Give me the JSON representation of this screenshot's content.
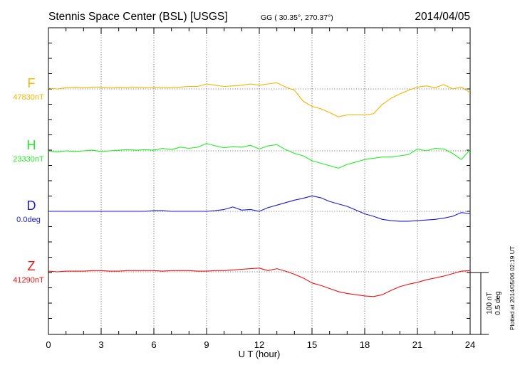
{
  "header": {
    "station": "Stennis Space Center (BSL)  [USGS]",
    "coords": "GG ( 30.35°, 270.37°)",
    "date": "2014/04/05"
  },
  "side_note": "Plotted at 2014/05/06 02:19 UT",
  "scale_bar": {
    "line1": "100 nT",
    "line2": "0.5 deg"
  },
  "chart_data": {
    "type": "line",
    "xlabel": "U T (hour)",
    "xlim": [
      0,
      24
    ],
    "xticks": [
      0,
      3,
      6,
      9,
      12,
      15,
      18,
      21,
      24
    ],
    "grid": true,
    "series": [
      {
        "name": "F",
        "baseline_label": "47830nT",
        "color": "#f5b400",
        "x": [
          0,
          0.5,
          1,
          1.5,
          2,
          2.5,
          3,
          3.5,
          4,
          4.5,
          5,
          5.5,
          6,
          6.5,
          7,
          7.5,
          8,
          8.5,
          9,
          9.5,
          10,
          10.5,
          11,
          11.5,
          12,
          12.5,
          13,
          13.5,
          14,
          14.5,
          15,
          15.5,
          16,
          16.5,
          17,
          17.5,
          18,
          18.5,
          19,
          19.5,
          20,
          20.5,
          21,
          21.5,
          22,
          22.5,
          23,
          23.5,
          24
        ],
        "y": [
          1,
          0,
          2,
          3,
          2,
          3,
          3,
          2,
          3,
          2,
          3,
          2,
          3,
          2,
          2,
          3,
          4,
          4,
          8,
          6,
          4,
          5,
          6,
          8,
          6,
          8,
          10,
          3,
          -2,
          -20,
          -28,
          -32,
          -38,
          -45,
          -42,
          -42,
          -42,
          -40,
          -25,
          -15,
          -8,
          -2,
          3,
          5,
          2,
          7,
          0,
          3,
          -6
        ]
      },
      {
        "name": "H",
        "baseline_label": "23330nT",
        "color": "#22ee22",
        "x": [
          0,
          0.5,
          1,
          1.5,
          2,
          2.5,
          3,
          3.5,
          4,
          4.5,
          5,
          5.5,
          6,
          6.5,
          7,
          7.5,
          8,
          8.5,
          9,
          9.5,
          10,
          10.5,
          11,
          11.5,
          12,
          12.5,
          13,
          13.5,
          14,
          14.5,
          15,
          15.5,
          16,
          16.5,
          17,
          17.5,
          18,
          18.5,
          19,
          19.5,
          20,
          20.5,
          21,
          21.5,
          22,
          22.5,
          23,
          23.5,
          24
        ],
        "y": [
          0,
          -2,
          0,
          -1,
          0,
          1,
          -1,
          0,
          1,
          2,
          1,
          2,
          1,
          4,
          2,
          6,
          4,
          6,
          12,
          8,
          5,
          7,
          6,
          9,
          3,
          8,
          10,
          2,
          -4,
          -8,
          -16,
          -20,
          -24,
          -28,
          -22,
          -18,
          -14,
          -12,
          -10,
          -10,
          -8,
          -6,
          3,
          0,
          4,
          3,
          -4,
          -14,
          2
        ]
      },
      {
        "name": "D",
        "baseline_label": "0.0deg",
        "color": "#1a1ad0",
        "x": [
          0,
          0.5,
          1,
          1.5,
          2,
          2.5,
          3,
          3.5,
          4,
          4.5,
          5,
          5.5,
          6,
          6.5,
          7,
          7.5,
          8,
          8.5,
          9,
          9.5,
          10,
          10.5,
          11,
          11.5,
          12,
          12.5,
          13,
          13.5,
          14,
          14.5,
          15,
          15.5,
          16,
          16.5,
          17,
          17.5,
          18,
          18.5,
          19,
          19.5,
          20,
          20.5,
          21,
          21.5,
          22,
          22.5,
          23,
          23.5,
          24
        ],
        "y": [
          0,
          0,
          0,
          0,
          0,
          0,
          0,
          0,
          0,
          0,
          0,
          0,
          1,
          1,
          0,
          0,
          0,
          0,
          0,
          1,
          3,
          7,
          2,
          3,
          0,
          6,
          10,
          14,
          18,
          21,
          25,
          22,
          16,
          12,
          8,
          2,
          -4,
          -8,
          -13,
          -15,
          -16,
          -16,
          -15,
          -14,
          -13,
          -11,
          -8,
          -2,
          -4
        ]
      },
      {
        "name": "Z",
        "baseline_label": "41290nT",
        "color": "#ee1111",
        "x": [
          0,
          0.5,
          1,
          1.5,
          2,
          2.5,
          3,
          3.5,
          4,
          4.5,
          5,
          5.5,
          6,
          6.5,
          7,
          7.5,
          8,
          8.5,
          9,
          9.5,
          10,
          10.5,
          11,
          11.5,
          12,
          12.5,
          13,
          13.5,
          14,
          14.5,
          15,
          15.5,
          16,
          16.5,
          17,
          17.5,
          18,
          18.5,
          19,
          19.5,
          20,
          20.5,
          21,
          21.5,
          22,
          22.5,
          23,
          23.5,
          24
        ],
        "y": [
          1,
          0,
          1,
          1,
          1,
          2,
          2,
          1,
          1,
          2,
          2,
          2,
          2,
          1,
          2,
          2,
          2,
          1,
          1,
          2,
          2,
          3,
          4,
          5,
          6,
          2,
          5,
          1,
          -4,
          -10,
          -18,
          -22,
          -27,
          -32,
          -35,
          -37,
          -39,
          -40,
          -37,
          -30,
          -24,
          -20,
          -17,
          -13,
          -10,
          -7,
          -3,
          1,
          2
        ]
      }
    ]
  }
}
